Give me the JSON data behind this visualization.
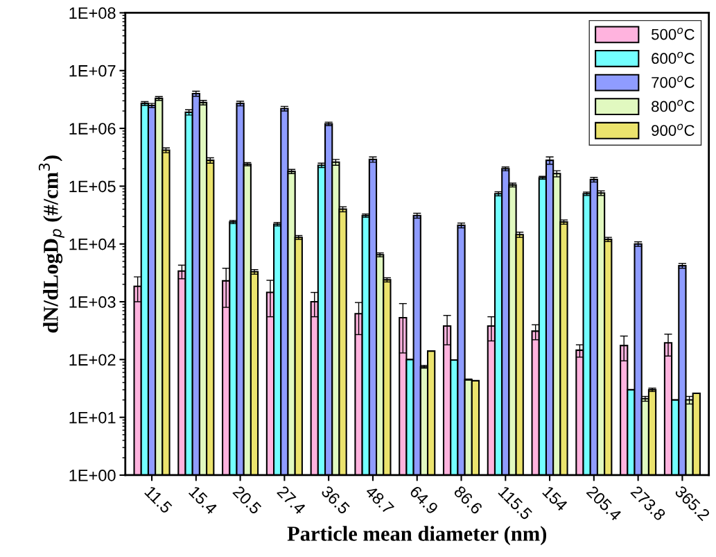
{
  "chart_data": {
    "type": "bar",
    "xlabel": "Particle mean diameter (nm)",
    "ylabel": "dN/dLogD$_{p}$ (#/cm$^{3}$)",
    "categories": [
      "11.5",
      "15.4",
      "20.5",
      "27.4",
      "36.5",
      "48.7",
      "64.9",
      "86.6",
      "115.5",
      "154",
      "205.4",
      "273.8",
      "365.2"
    ],
    "series": [
      {
        "name": "500$^{o}$C",
        "color": "#ffb3de",
        "values": [
          1850,
          3400,
          2300,
          1450,
          1000,
          620,
          530,
          380,
          380,
          310,
          145,
          175,
          195
        ],
        "errors": [
          850,
          900,
          1500,
          900,
          450,
          350,
          400,
          200,
          170,
          90,
          35,
          80,
          80
        ]
      },
      {
        "name": "600$^{o}$C",
        "color": "#73ffff",
        "values": [
          2700000,
          1900000,
          24000,
          22000,
          230000,
          31000,
          100,
          98,
          74000,
          140000,
          74000,
          30,
          20
        ],
        "errors": [
          200000,
          200000,
          1500,
          1500,
          20000,
          2000,
          null,
          null,
          6000,
          8000,
          5000,
          null,
          null
        ]
      },
      {
        "name": "700$^{o}$C",
        "color": "#8f9cff",
        "values": [
          2500000,
          4000000,
          2700000,
          2200000,
          1200000,
          290000,
          31000,
          21000,
          200000,
          280000,
          130000,
          10000,
          4200
        ],
        "errors": [
          200000,
          400000,
          250000,
          200000,
          80000,
          30000,
          3000,
          2000,
          15000,
          40000,
          12000,
          900,
          400
        ]
      },
      {
        "name": "800$^{o}$C",
        "color": "#e1f9c0",
        "values": [
          3300000,
          2800000,
          240000,
          180000,
          260000,
          6500,
          75,
          45,
          105000,
          165000,
          76000,
          21,
          20
        ],
        "errors": [
          250000,
          250000,
          15000,
          15000,
          30000,
          500,
          4,
          1,
          8000,
          20000,
          7000,
          2,
          3
        ]
      },
      {
        "name": "900$^{o}$C",
        "color": "#ebe36d",
        "values": [
          420000,
          280000,
          3300,
          13000,
          40000,
          2400,
          140,
          43,
          14500,
          24000,
          12000,
          30,
          26
        ],
        "errors": [
          40000,
          30000,
          300,
          1000,
          4000,
          200,
          null,
          null,
          1500,
          2000,
          1000,
          2,
          null
        ]
      }
    ],
    "log": "y",
    "ylim": [
      1,
      100000000
    ],
    "yticks": [
      {
        "value": 1,
        "label": "1E+00"
      },
      {
        "value": 10,
        "label": "1E+01"
      },
      {
        "value": 100,
        "label": "1E+02"
      },
      {
        "value": 1000,
        "label": "1E+03"
      },
      {
        "value": 10000,
        "label": "1E+04"
      },
      {
        "value": 100000,
        "label": "1E+05"
      },
      {
        "value": 1000000,
        "label": "1E+06"
      },
      {
        "value": 10000000,
        "label": "1E+07"
      },
      {
        "value": 100000000,
        "label": "1E+08"
      }
    ],
    "legend": "top right",
    "grid": false
  }
}
